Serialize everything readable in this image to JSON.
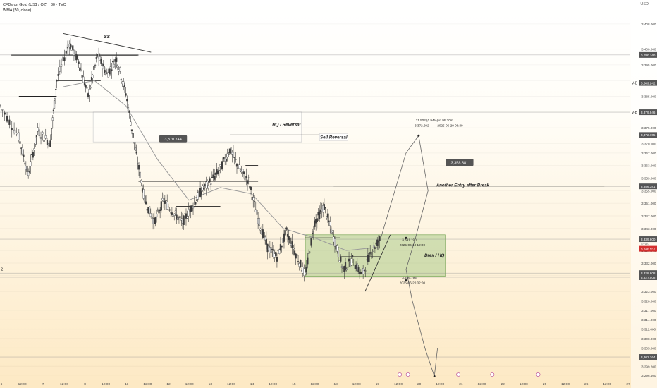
{
  "header": {
    "title": "CFDs on Gold (US$ / OZ) · 30 · TVC",
    "indicator": "WMA (50, close)",
    "currency": "USD"
  },
  "colors": {
    "bg_top": "#ffffff",
    "bg_bottom": "#fde9c4",
    "candle": "#3c3c3c",
    "wma": "#9a9a9a",
    "zone": "#9bc47a",
    "last_price": "#d32f2f",
    "label_bg": "#555555"
  },
  "chart_data": {
    "type": "candlestick",
    "symbol": "CFDs on Gold (US$ / OZ)",
    "timeframe": "30",
    "source": "TVC",
    "ylim": [
      3295.0,
      3410.0
    ],
    "y_ticks": [
      "3,408.000",
      "3,400.000",
      "3,395.000",
      "3,390.000",
      "3,385.000",
      "3,380.000",
      "3,375.000",
      "3,370.000",
      "3,367.000",
      "3,363.000",
      "3,359.000",
      "3,355.000",
      "3,351.000",
      "3,347.000",
      "3,343.000",
      "3,336.000",
      "3,332.000",
      "3,328.000",
      "3,323.000",
      "3,320.000",
      "3,317.000",
      "3,314.000",
      "3,311.000",
      "3,308.000",
      "3,305.000",
      "3,299.200",
      "3,296.400"
    ],
    "x_ticks": [
      "6",
      "12:00",
      "7",
      "12:00",
      "8",
      "12:00",
      "11",
      "12:00",
      "12",
      "12:00",
      "13",
      "12:00",
      "14",
      "12:00",
      "15",
      "12:00",
      "18",
      "12:00",
      "19",
      "12:00",
      "20",
      "12:00",
      "21",
      "12:00",
      "22",
      "12:00",
      "25",
      "12:00",
      "26",
      "12:00",
      "27"
    ],
    "price_path": [
      {
        "x": 0.0,
        "y": 3382
      },
      {
        "x": 0.03,
        "y": 3372
      },
      {
        "x": 0.045,
        "y": 3360
      },
      {
        "x": 0.06,
        "y": 3374
      },
      {
        "x": 0.08,
        "y": 3370
      },
      {
        "x": 0.09,
        "y": 3390
      },
      {
        "x": 0.11,
        "y": 3402
      },
      {
        "x": 0.125,
        "y": 3396
      },
      {
        "x": 0.14,
        "y": 3385
      },
      {
        "x": 0.155,
        "y": 3398
      },
      {
        "x": 0.17,
        "y": 3392
      },
      {
        "x": 0.185,
        "y": 3397
      },
      {
        "x": 0.2,
        "y": 3386
      },
      {
        "x": 0.215,
        "y": 3368
      },
      {
        "x": 0.23,
        "y": 3352
      },
      {
        "x": 0.245,
        "y": 3345
      },
      {
        "x": 0.26,
        "y": 3352
      },
      {
        "x": 0.275,
        "y": 3348
      },
      {
        "x": 0.29,
        "y": 3345
      },
      {
        "x": 0.305,
        "y": 3350
      },
      {
        "x": 0.32,
        "y": 3355
      },
      {
        "x": 0.335,
        "y": 3358
      },
      {
        "x": 0.35,
        "y": 3362
      },
      {
        "x": 0.365,
        "y": 3368
      },
      {
        "x": 0.38,
        "y": 3362
      },
      {
        "x": 0.395,
        "y": 3358
      },
      {
        "x": 0.41,
        "y": 3346
      },
      {
        "x": 0.425,
        "y": 3337
      },
      {
        "x": 0.44,
        "y": 3334
      },
      {
        "x": 0.455,
        "y": 3342
      },
      {
        "x": 0.47,
        "y": 3335
      },
      {
        "x": 0.485,
        "y": 3328
      },
      {
        "x": 0.5,
        "y": 3345
      },
      {
        "x": 0.515,
        "y": 3350
      },
      {
        "x": 0.53,
        "y": 3340
      },
      {
        "x": 0.545,
        "y": 3330
      },
      {
        "x": 0.56,
        "y": 3333
      },
      {
        "x": 0.575,
        "y": 3328
      },
      {
        "x": 0.59,
        "y": 3336
      },
      {
        "x": 0.605,
        "y": 3340
      }
    ],
    "wma_path": [
      {
        "x": 0.1,
        "y": 3388
      },
      {
        "x": 0.15,
        "y": 3390
      },
      {
        "x": 0.2,
        "y": 3382
      },
      {
        "x": 0.25,
        "y": 3365
      },
      {
        "x": 0.3,
        "y": 3352
      },
      {
        "x": 0.35,
        "y": 3356
      },
      {
        "x": 0.4,
        "y": 3354
      },
      {
        "x": 0.45,
        "y": 3343
      },
      {
        "x": 0.5,
        "y": 3340
      },
      {
        "x": 0.55,
        "y": 3336
      },
      {
        "x": 0.6,
        "y": 3337
      }
    ],
    "projection_path": [
      {
        "x": 0.605,
        "y": 3340
      },
      {
        "x": 0.645,
        "y": 3367
      },
      {
        "x": 0.665,
        "y": 3372.5
      },
      {
        "x": 0.68,
        "y": 3355
      },
      {
        "x": 0.665,
        "y": 3372.5
      },
      {
        "x": 0.68,
        "y": 3355
      },
      {
        "x": 0.66,
        "y": 3340
      },
      {
        "x": 0.645,
        "y": 3330
      },
      {
        "x": 0.655,
        "y": 3320
      },
      {
        "x": 0.675,
        "y": 3305
      },
      {
        "x": 0.69,
        "y": 3296
      },
      {
        "x": 0.695,
        "y": 3305
      }
    ],
    "horizontal_levels": [
      {
        "price": 3398.148,
        "label": "3,398.148"
      },
      {
        "price": 3389.242,
        "label": "3,389.242",
        "tag": "V-B"
      },
      {
        "price": 3379.946,
        "label": "3,379.946",
        "tag": "V-B"
      },
      {
        "price": 3372.705,
        "label": "3,372.705"
      },
      {
        "price": 3356.381,
        "label": "3,356.381"
      },
      {
        "price": 3339.6,
        "label": "3,339.600"
      },
      {
        "price": 3328.808,
        "label": "3,328.808"
      },
      {
        "price": 3327.508,
        "label": "3,327.508"
      },
      {
        "price": 3302.164,
        "label": "3,302.164"
      }
    ],
    "last_price": {
      "price": 3336.557,
      "label": "3,336.557",
      "countdown": "03:46"
    },
    "annotations": [
      {
        "text": "SS",
        "x": 0.17,
        "price": 3404
      },
      {
        "text": "HQ / Reversal",
        "x": 0.455,
        "price": 3376
      },
      {
        "text": "Sell Reversal",
        "x": 0.53,
        "price": 3372
      },
      {
        "text": "Another Entry after Break",
        "x": 0.735,
        "price": 3356.8
      },
      {
        "text": "Drex / HQ",
        "x": 0.69,
        "price": 3334.5
      },
      {
        "text": "3,370.744",
        "x": 0.275,
        "price": 3371.5
      },
      {
        "text": "3,358.381",
        "x": 0.73,
        "price": 3364
      },
      {
        "text": "31.502 (0.94%) in 9h 30m",
        "x": 0.69,
        "price": 3377.5
      },
      {
        "text": "3,372.692",
        "x": 0.67,
        "price": 3375.8
      },
      {
        "text": "2025-06-20 08:30",
        "x": 0.715,
        "price": 3375.8
      },
      {
        "text": "3,341.190",
        "x": 0.65,
        "price": 3339.5
      },
      {
        "text": "2025-06-19 12:00",
        "x": 0.655,
        "price": 3337.8
      },
      {
        "text": "3,326.793",
        "x": 0.65,
        "price": 3327.5
      },
      {
        "text": "2025-06-20 02:00",
        "x": 0.655,
        "price": 3325.8
      }
    ],
    "zones": [
      {
        "name": "HQ / Reversal",
        "x0": 0.148,
        "x1": 0.479,
        "y0": 3370.5,
        "y1": 3380.0,
        "style": "outline"
      },
      {
        "name": "Drex / HQ",
        "x0": 0.485,
        "x1": 0.707,
        "y0": 3327.8,
        "y1": 3341.0,
        "style": "fill"
      }
    ],
    "left_label": "2"
  }
}
